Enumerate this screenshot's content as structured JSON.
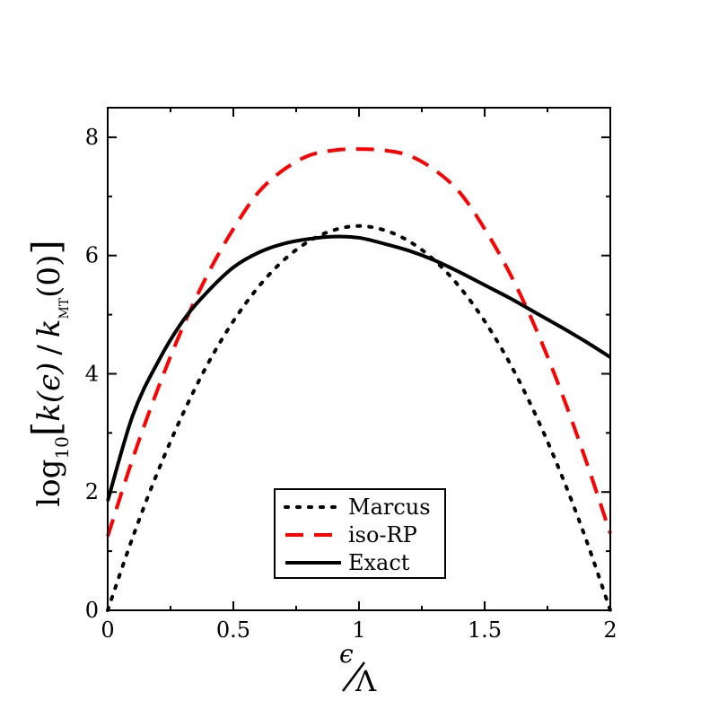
{
  "chart_data": {
    "type": "line",
    "title": "",
    "xlabel": {
      "numerator": "ϵ",
      "denominator": "Λ"
    },
    "ylabel": {
      "prefix": "log",
      "base": "10",
      "numerator": "k(ϵ)",
      "slash": "/",
      "denominator": "k",
      "denominator_sub": "MT",
      "denominator_arg": "(0)"
    },
    "xlim": [
      0,
      2
    ],
    "ylim": [
      0,
      8.5
    ],
    "xticks": [
      0,
      0.5,
      1,
      1.5,
      2
    ],
    "xtick_labels": [
      "0",
      "0.5",
      "1",
      "1.5",
      "2"
    ],
    "yticks": [
      0,
      2,
      4,
      6,
      8
    ],
    "ytick_labels": [
      "0",
      "2",
      "4",
      "6",
      "8"
    ],
    "grid": false,
    "legend_position": "bottom-center",
    "x": [
      0,
      0.1,
      0.2,
      0.3,
      0.4,
      0.5,
      0.6,
      0.7,
      0.8,
      0.9,
      1.0,
      1.1,
      1.2,
      1.3,
      1.4,
      1.5,
      1.6,
      1.7,
      1.8,
      1.9,
      2.0
    ],
    "series": [
      {
        "name": "Marcus",
        "style": "dotted",
        "color": "#000000",
        "values": [
          0.0,
          1.24,
          2.35,
          3.33,
          4.18,
          4.89,
          5.47,
          5.92,
          6.24,
          6.43,
          6.5,
          6.43,
          6.24,
          5.92,
          5.47,
          4.89,
          4.18,
          3.33,
          2.35,
          1.24,
          0.0
        ]
      },
      {
        "name": "iso-RP",
        "style": "dashed",
        "color": "#ff0000",
        "values": [
          1.25,
          2.57,
          3.75,
          4.8,
          5.7,
          6.45,
          7.07,
          7.45,
          7.69,
          7.78,
          7.8,
          7.78,
          7.69,
          7.45,
          7.07,
          6.45,
          5.7,
          4.8,
          3.75,
          2.57,
          1.3
        ]
      },
      {
        "name": "Exact",
        "style": "solid",
        "color": "#000000",
        "values": [
          1.85,
          3.3,
          4.2,
          4.9,
          5.4,
          5.8,
          6.05,
          6.2,
          6.28,
          6.32,
          6.3,
          6.2,
          6.08,
          5.92,
          5.72,
          5.5,
          5.28,
          5.04,
          4.8,
          4.55,
          4.28
        ]
      }
    ]
  }
}
